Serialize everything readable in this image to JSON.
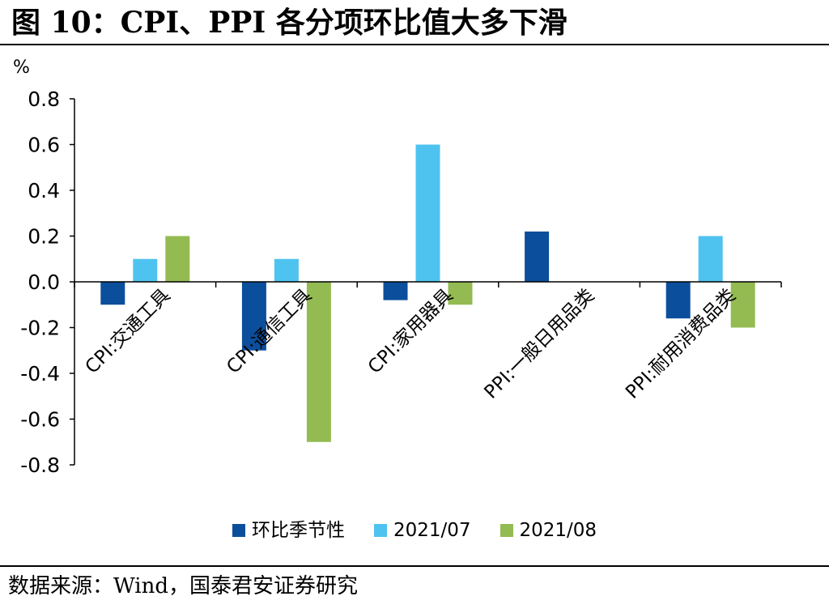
{
  "figure": {
    "title": "图 10：CPI、PPI 各分项环比值大多下滑",
    "source": "数据来源：Wind，国泰君安证券研究"
  },
  "chart_data": {
    "type": "bar",
    "unit_label": "%",
    "categories": [
      "CPI:交通工具",
      "CPI:通信工具",
      "CPI:家用器具",
      "PPI:一般日用品类",
      "PPI:耐用消费品类"
    ],
    "series": [
      {
        "name": "环比季节性",
        "color": "#0b4f9c",
        "values": [
          -0.1,
          -0.3,
          -0.08,
          0.22,
          -0.16
        ]
      },
      {
        "name": "2021/07",
        "color": "#4fc3f0",
        "values": [
          0.1,
          0.1,
          0.6,
          null,
          0.2
        ]
      },
      {
        "name": "2021/08",
        "color": "#93bb52",
        "values": [
          0.2,
          -0.7,
          -0.1,
          null,
          -0.2
        ]
      }
    ],
    "ylim": [
      -0.8,
      0.8
    ],
    "yticks": [
      0.8,
      0.6,
      0.4,
      0.2,
      0.0,
      -0.2,
      -0.4,
      -0.6,
      -0.8
    ],
    "ytick_labels": [
      "0.8",
      "0.6",
      "0.4",
      "0.2",
      "0.0",
      "-0.2",
      "-0.4",
      "-0.6",
      "-0.8"
    ],
    "legend_position": "bottom",
    "grid": false
  }
}
